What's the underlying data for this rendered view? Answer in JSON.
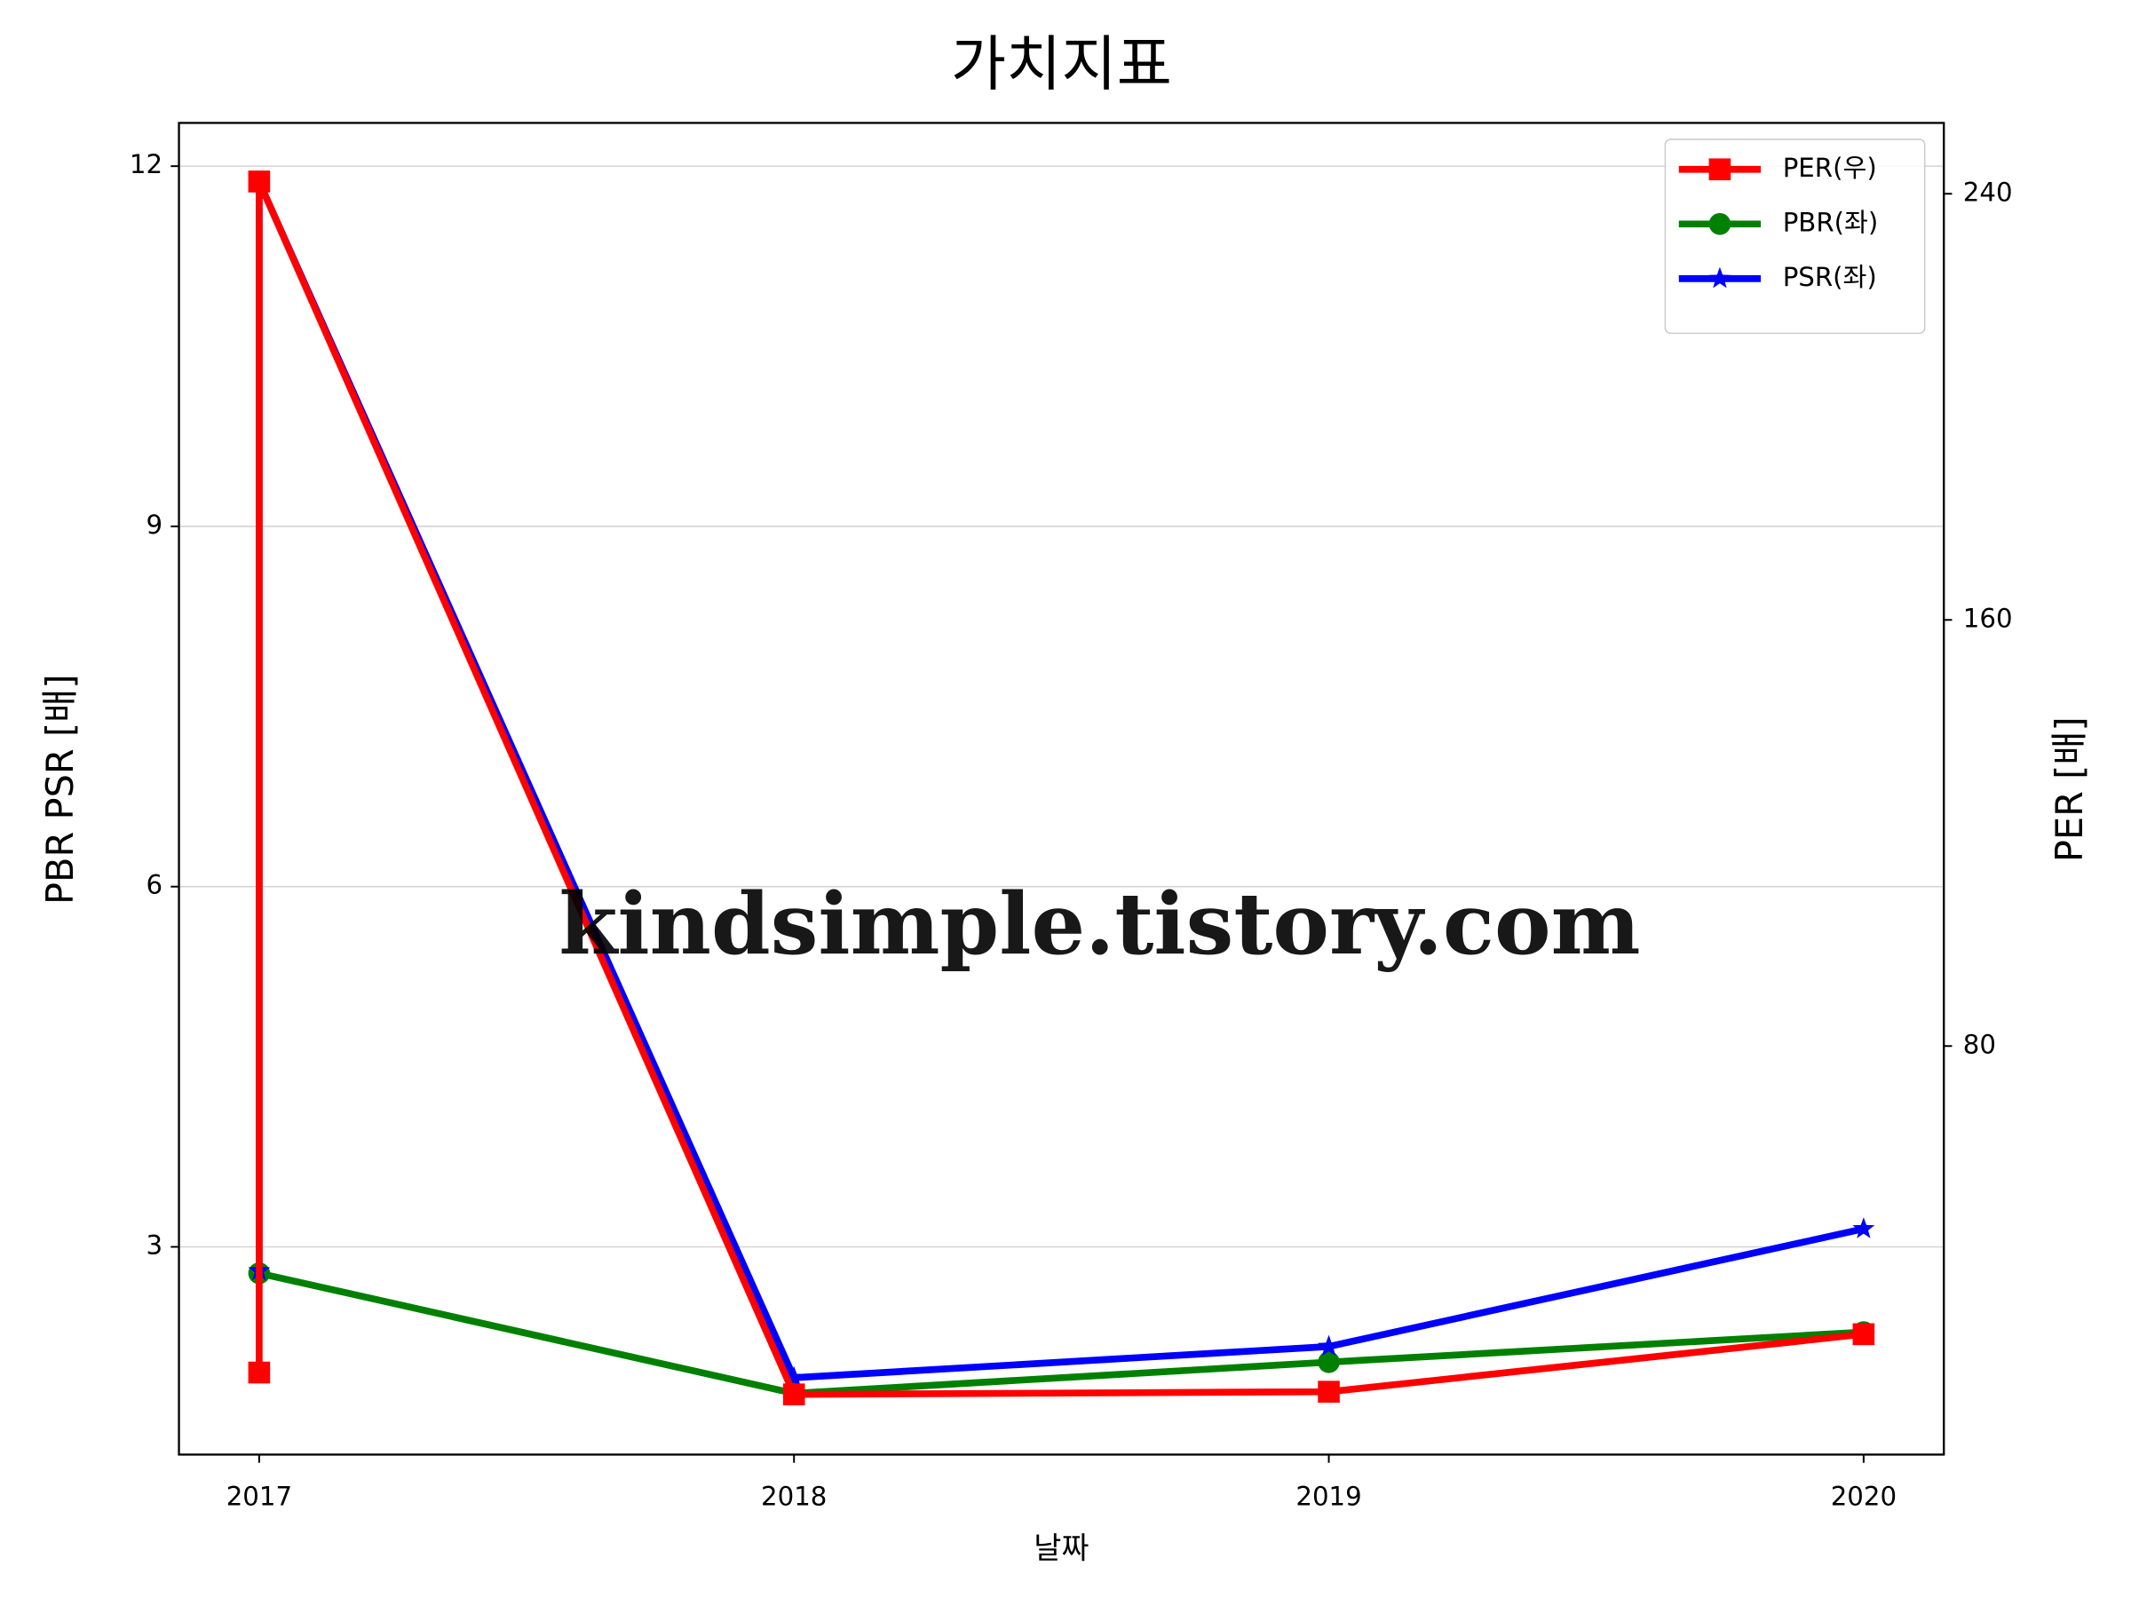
{
  "chart_data": {
    "type": "line",
    "title": "가치지표",
    "xlabel": "날짜",
    "ylabel": "PBR PSR [배]",
    "y2label": "PER [배]",
    "ylabel_color": "#008000",
    "y2label_color": "#ff0000",
    "watermark": "kindsimple.tistory.com",
    "xlim": [
      2016.85,
      2020.15
    ],
    "xticks": [
      2017,
      2018,
      2019,
      2020
    ],
    "ylim": [
      1.27,
      12.36
    ],
    "yticks": [
      3,
      6,
      9,
      12
    ],
    "y2lim": [
      3.3,
      253.3
    ],
    "y2ticks": [
      80,
      160,
      240
    ],
    "grid": true,
    "legend": "upper right",
    "series": [
      {
        "name": "PER(우)",
        "color": "#ff0000",
        "marker": "square",
        "axis": "y2",
        "x": [
          2017,
          2017,
          2018,
          2019,
          2020
        ],
        "values": [
          18.7,
          242.3,
          14.6,
          15.1,
          25.9
        ]
      },
      {
        "name": "PBR(좌)",
        "color": "#008000",
        "marker": "circle",
        "axis": "y",
        "x": [
          2017,
          2018,
          2019,
          2020
        ],
        "values": [
          2.78,
          1.78,
          2.04,
          2.29
        ]
      },
      {
        "name": "PSR(좌)",
        "color": "#0000ff",
        "marker": "star",
        "axis": "y",
        "x": [
          2017,
          2017,
          2018,
          2019,
          2020
        ],
        "values": [
          2.8,
          11.87,
          1.91,
          2.17,
          3.15
        ]
      }
    ]
  }
}
